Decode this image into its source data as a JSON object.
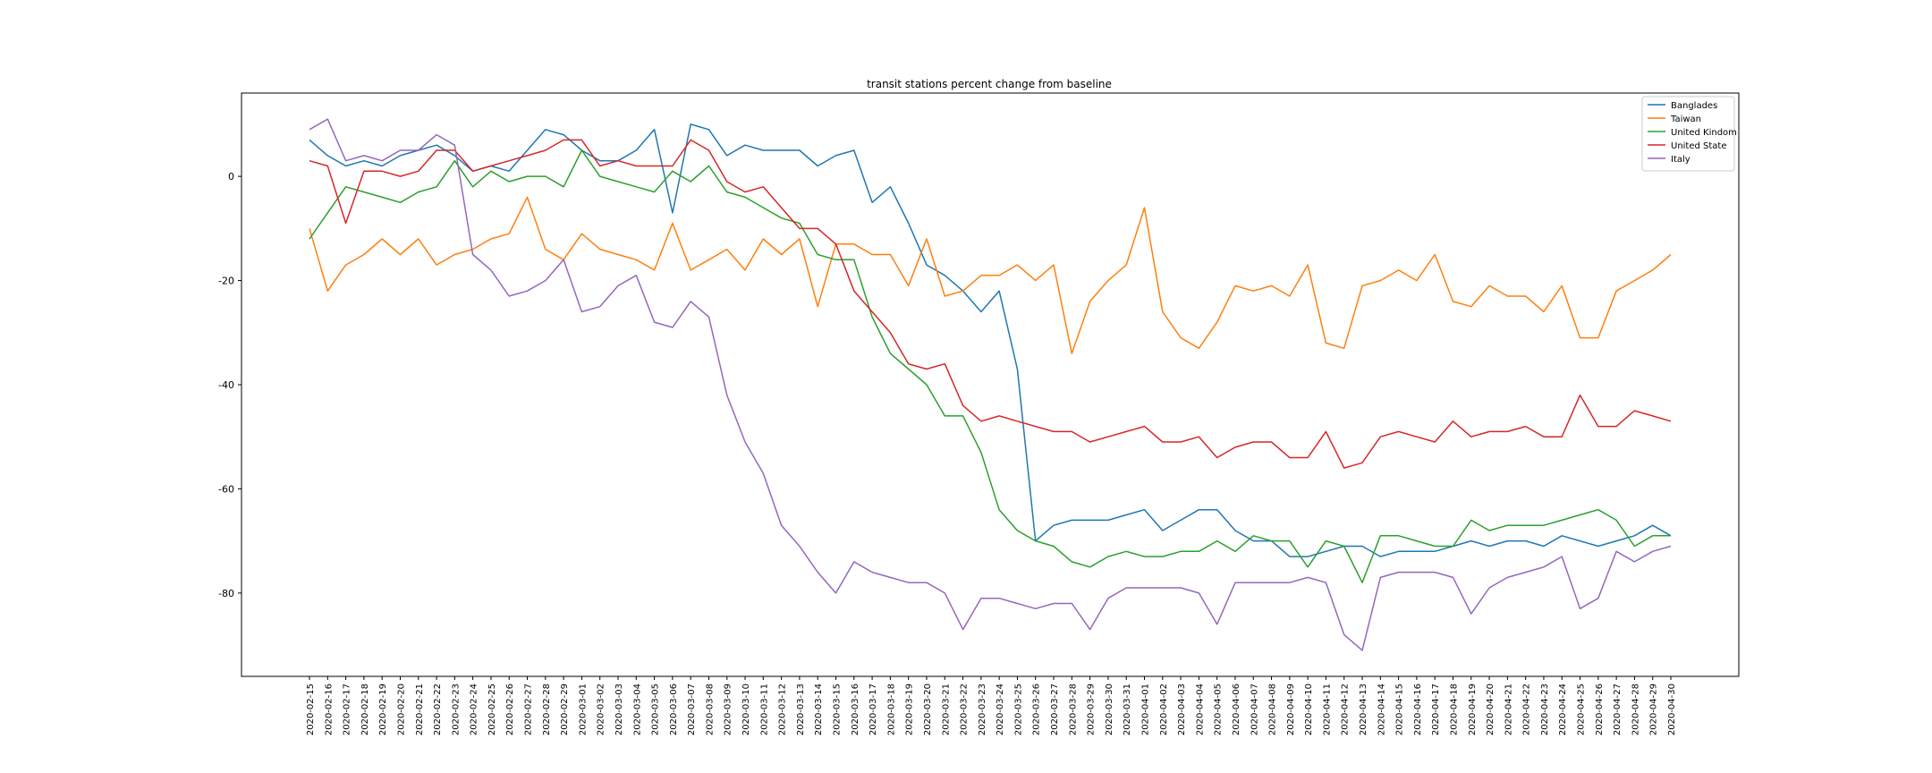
{
  "chart_data": {
    "type": "line",
    "title": "transit stations percent change from baseline",
    "xlabel": "",
    "ylabel": "",
    "x": [
      "2020-02-15",
      "2020-02-16",
      "2020-02-17",
      "2020-02-18",
      "2020-02-19",
      "2020-02-20",
      "2020-02-21",
      "2020-02-22",
      "2020-02-23",
      "2020-02-24",
      "2020-02-25",
      "2020-02-26",
      "2020-02-27",
      "2020-02-28",
      "2020-02-29",
      "2020-03-01",
      "2020-03-02",
      "2020-03-03",
      "2020-03-04",
      "2020-03-05",
      "2020-03-06",
      "2020-03-07",
      "2020-03-08",
      "2020-03-09",
      "2020-03-10",
      "2020-03-11",
      "2020-03-12",
      "2020-03-13",
      "2020-03-14",
      "2020-03-15",
      "2020-03-16",
      "2020-03-17",
      "2020-03-18",
      "2020-03-19",
      "2020-03-20",
      "2020-03-21",
      "2020-03-22",
      "2020-03-23",
      "2020-03-24",
      "2020-03-25",
      "2020-03-26",
      "2020-03-27",
      "2020-03-28",
      "2020-03-29",
      "2020-03-30",
      "2020-03-31",
      "2020-04-01",
      "2020-04-02",
      "2020-04-03",
      "2020-04-04",
      "2020-04-05",
      "2020-04-06",
      "2020-04-07",
      "2020-04-08",
      "2020-04-09",
      "2020-04-10",
      "2020-04-11",
      "2020-04-12",
      "2020-04-13",
      "2020-04-14",
      "2020-04-15",
      "2020-04-16",
      "2020-04-17",
      "2020-04-18",
      "2020-04-19",
      "2020-04-20",
      "2020-04-21",
      "2020-04-22",
      "2020-04-23",
      "2020-04-24",
      "2020-04-25",
      "2020-04-26",
      "2020-04-27",
      "2020-04-28",
      "2020-04-29",
      "2020-04-30"
    ],
    "ylim": [
      -96,
      16
    ],
    "yticks": [
      0,
      -20,
      -40,
      -60,
      -80
    ],
    "grid": false,
    "legend_position": "top-right",
    "series": [
      {
        "name": "Banglades",
        "color": "#1f77b4",
        "values": [
          7,
          4,
          2,
          3,
          2,
          4,
          5,
          6,
          4,
          1,
          2,
          1,
          5,
          9,
          8,
          5,
          3,
          3,
          5,
          9,
          -7,
          10,
          9,
          4,
          6,
          5,
          5,
          5,
          2,
          4,
          5,
          -5,
          -2,
          -9,
          -17,
          -19,
          -22,
          -26,
          -22,
          -37,
          -70,
          -67,
          -66,
          -66,
          -66,
          -65,
          -64,
          -68,
          -66,
          -64,
          -64,
          -68,
          -70,
          -70,
          -73,
          -73,
          -72,
          -71,
          -71,
          -73,
          -72,
          -72,
          -72,
          -71,
          -70,
          -71,
          -70,
          -70,
          -71,
          -69,
          -70,
          -71,
          -70,
          -69,
          -67,
          -69
        ]
      },
      {
        "name": "Taiwan",
        "color": "#ff7f0e",
        "values": [
          -10,
          -22,
          -17,
          -15,
          -12,
          -15,
          -12,
          -17,
          -15,
          -14,
          -12,
          -11,
          -4,
          -14,
          -16,
          -11,
          -14,
          -15,
          -16,
          -18,
          -9,
          -18,
          -16,
          -14,
          -18,
          -12,
          -15,
          -12,
          -25,
          -13,
          -13,
          -15,
          -15,
          -21,
          -12,
          -23,
          -22,
          -19,
          -19,
          -17,
          -20,
          -17,
          -34,
          -24,
          -20,
          -17,
          -6,
          -26,
          -31,
          -33,
          -28,
          -21,
          -22,
          -21,
          -23,
          -17,
          -32,
          -33,
          -21,
          -20,
          -18,
          -20,
          -15,
          -24,
          -25,
          -21,
          -23,
          -23,
          -26,
          -21,
          -31,
          -31,
          -22,
          -20,
          -18,
          -15
        ]
      },
      {
        "name": "United Kindom",
        "color": "#2ca02c",
        "values": [
          -12,
          -7,
          -2,
          -3,
          -4,
          -5,
          -3,
          -2,
          3,
          -2,
          1,
          -1,
          0,
          0,
          -2,
          5,
          0,
          -1,
          -2,
          -3,
          1,
          -1,
          2,
          -3,
          -4,
          -6,
          -8,
          -9,
          -15,
          -16,
          -16,
          -27,
          -34,
          -37,
          -40,
          -46,
          -46,
          -53,
          -64,
          -68,
          -70,
          -71,
          -74,
          -75,
          -73,
          -72,
          -73,
          -73,
          -72,
          -72,
          -70,
          -72,
          -69,
          -70,
          -70,
          -75,
          -70,
          -71,
          -78,
          -69,
          -69,
          -70,
          -71,
          -71,
          -66,
          -68,
          -67,
          -67,
          -67,
          -66,
          -65,
          -64,
          -66,
          -71,
          -69,
          -69
        ]
      },
      {
        "name": "United State",
        "color": "#d62728",
        "values": [
          3,
          2,
          -9,
          1,
          1,
          0,
          1,
          5,
          5,
          1,
          2,
          3,
          4,
          5,
          7,
          7,
          2,
          3,
          2,
          2,
          2,
          7,
          5,
          -1,
          -3,
          -2,
          -6,
          -10,
          -10,
          -13,
          -22,
          -26,
          -30,
          -36,
          -37,
          -36,
          -44,
          -47,
          -46,
          -47,
          -48,
          -49,
          -49,
          -51,
          -50,
          -49,
          -48,
          -51,
          -51,
          -50,
          -54,
          -52,
          -51,
          -51,
          -54,
          -54,
          -49,
          -56,
          -55,
          -50,
          -49,
          -50,
          -51,
          -47,
          -50,
          -49,
          -49,
          -48,
          -50,
          -50,
          -42,
          -48,
          -48,
          -45,
          -46,
          -47
        ]
      },
      {
        "name": "Italy",
        "color": "#9467bd",
        "values": [
          9,
          11,
          3,
          4,
          3,
          5,
          5,
          8,
          6,
          -15,
          -18,
          -23,
          -22,
          -20,
          -16,
          -26,
          -25,
          -21,
          -19,
          -28,
          -29,
          -24,
          -27,
          -42,
          -51,
          -57,
          -67,
          -71,
          -76,
          -80,
          -74,
          -76,
          -77,
          -78,
          -78,
          -80,
          -87,
          -81,
          -81,
          -82,
          -83,
          -82,
          -82,
          -87,
          -81,
          -79,
          -79,
          -79,
          -79,
          -80,
          -86,
          -78,
          -78,
          -78,
          -78,
          -77,
          -78,
          -88,
          -91,
          -77,
          -76,
          -76,
          -76,
          -77,
          -84,
          -79,
          -77,
          -76,
          -75,
          -73,
          -83,
          -81,
          -72,
          -74,
          -72,
          -71
        ]
      }
    ]
  }
}
